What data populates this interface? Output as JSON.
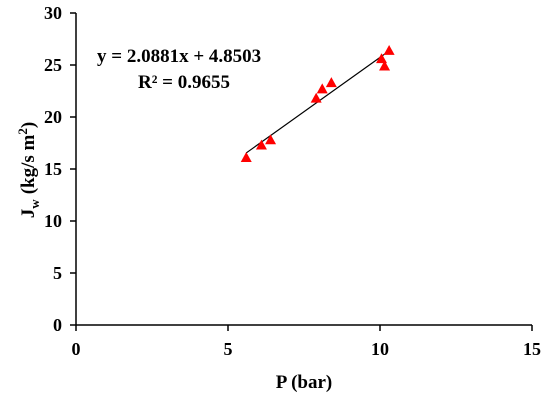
{
  "chart_data": {
    "type": "scatter",
    "xlabel": "P (bar)",
    "ylabel_main": "J",
    "ylabel_sub": "w",
    "ylabel_units": "(kg/s m",
    "ylabel_sup": "2",
    "ylabel_close": ")",
    "xlim": [
      0,
      15
    ],
    "ylim": [
      0,
      30
    ],
    "xticks": [
      0,
      5,
      10,
      15
    ],
    "yticks": [
      0,
      5,
      10,
      15,
      20,
      25,
      30
    ],
    "grid": false,
    "marker_color": "#ff0000",
    "line_color": "#000000",
    "series": [
      {
        "points": [
          {
            "x": 5.6,
            "y": 16.1
          },
          {
            "x": 6.1,
            "y": 17.3
          },
          {
            "x": 6.4,
            "y": 17.8
          },
          {
            "x": 7.9,
            "y": 21.8
          },
          {
            "x": 8.1,
            "y": 22.7
          },
          {
            "x": 8.4,
            "y": 23.3
          },
          {
            "x": 10.05,
            "y": 25.6
          },
          {
            "x": 10.15,
            "y": 24.9
          },
          {
            "x": 10.3,
            "y": 26.4
          }
        ]
      }
    ],
    "trendline": {
      "slope": 2.0881,
      "intercept": 4.8503,
      "x_range": [
        5.6,
        10.3
      ]
    },
    "annotations": {
      "equation": "y = 2.0881x + 4.8503",
      "r2": "R² = 0.9655"
    }
  }
}
